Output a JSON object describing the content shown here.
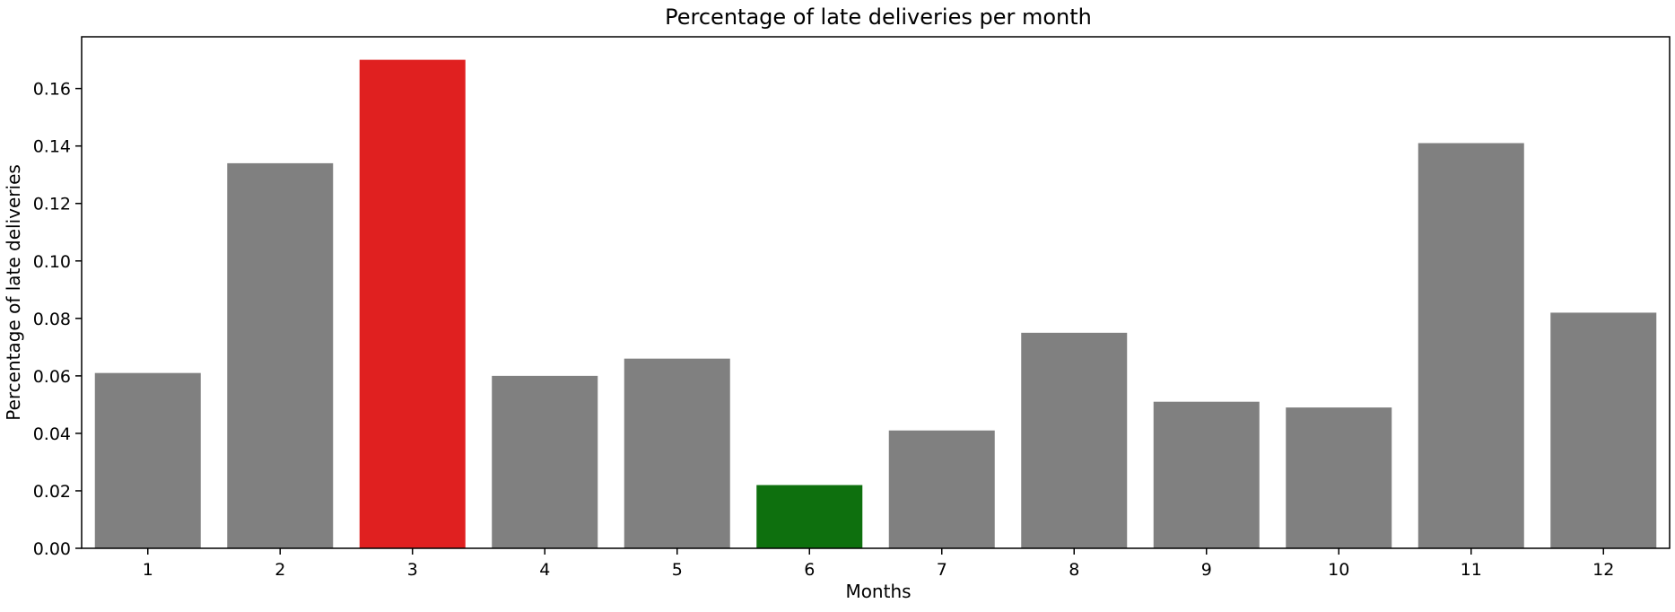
{
  "chart_data": {
    "type": "bar",
    "title": "Percentage of late deliveries per month",
    "xlabel": "Months",
    "ylabel": "Percentage of late deliveries",
    "categories": [
      "1",
      "2",
      "3",
      "4",
      "5",
      "6",
      "7",
      "8",
      "9",
      "10",
      "11",
      "12"
    ],
    "values": [
      0.061,
      0.134,
      0.17,
      0.06,
      0.066,
      0.022,
      0.041,
      0.075,
      0.051,
      0.049,
      0.141,
      0.082
    ],
    "colors": [
      "#808080",
      "#808080",
      "#e02020",
      "#808080",
      "#808080",
      "#0e700e",
      "#808080",
      "#808080",
      "#808080",
      "#808080",
      "#808080",
      "#808080"
    ],
    "ylim": [
      0,
      0.178
    ],
    "yticks": [
      "0.00",
      "0.02",
      "0.04",
      "0.06",
      "0.08",
      "0.10",
      "0.12",
      "0.14",
      "0.16"
    ],
    "grid": false,
    "legend": "none"
  }
}
